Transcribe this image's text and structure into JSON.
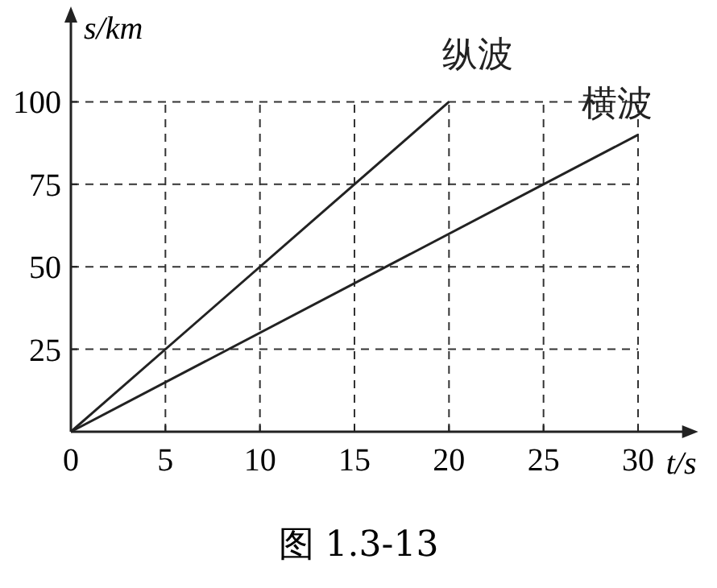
{
  "chart_data": {
    "type": "line",
    "xlabel": "t/s",
    "ylabel": "s/km",
    "xlim": [
      0,
      32.5
    ],
    "ylim": [
      0,
      125
    ],
    "xticks": [
      0,
      5,
      10,
      15,
      20,
      25,
      30
    ],
    "yticks": [
      {
        "value": 0,
        "label": null
      },
      25,
      50,
      75,
      100
    ],
    "grid": true,
    "marker": "none",
    "line_style": "solid",
    "series": [
      {
        "name": "纵波",
        "color": "#222222",
        "x": [
          0,
          20
        ],
        "values": [
          0,
          100
        ]
      },
      {
        "name": "横波",
        "color": "#222222",
        "x": [
          0,
          30
        ],
        "values": [
          0,
          90
        ]
      }
    ],
    "annotations": [
      "图 1.3-13"
    ]
  }
}
